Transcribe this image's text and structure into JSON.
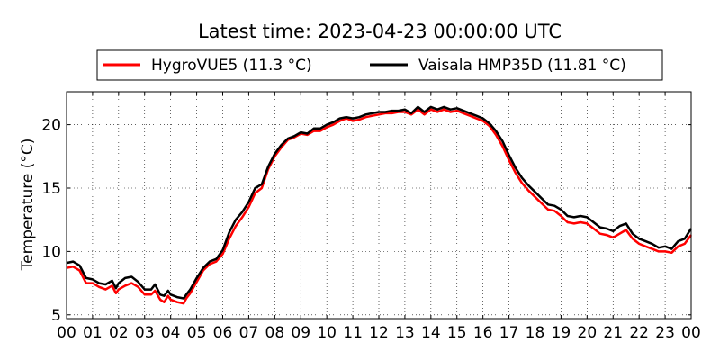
{
  "chart_data": {
    "type": "line",
    "title": "Latest time: 2023-04-23 00:00:00 UTC",
    "xlabel": "",
    "ylabel": "Temperature (°C)",
    "xlim": [
      0,
      24
    ],
    "ylim": [
      4.7,
      22.6
    ],
    "x_ticks": [
      "00",
      "01",
      "02",
      "03",
      "04",
      "05",
      "06",
      "07",
      "08",
      "09",
      "10",
      "11",
      "12",
      "13",
      "14",
      "15",
      "16",
      "17",
      "18",
      "19",
      "20",
      "21",
      "22",
      "23",
      "00"
    ],
    "y_ticks": [
      5,
      10,
      15,
      20
    ],
    "grid": true,
    "legend_position": "top",
    "series": [
      {
        "name": "HygroVUE5 (11.3 °C)",
        "color": "#ff0000",
        "points": [
          [
            0,
            8.7
          ],
          [
            0.25,
            8.8
          ],
          [
            0.5,
            8.5
          ],
          [
            0.75,
            7.5
          ],
          [
            1.0,
            7.5
          ],
          [
            1.25,
            7.2
          ],
          [
            1.5,
            7.0
          ],
          [
            1.75,
            7.3
          ],
          [
            1.9,
            6.7
          ],
          [
            2.0,
            7.0
          ],
          [
            2.25,
            7.3
          ],
          [
            2.5,
            7.5
          ],
          [
            2.75,
            7.2
          ],
          [
            3.0,
            6.6
          ],
          [
            3.25,
            6.6
          ],
          [
            3.4,
            6.9
          ],
          [
            3.6,
            6.2
          ],
          [
            3.75,
            6.0
          ],
          [
            3.9,
            6.5
          ],
          [
            4.0,
            6.2
          ],
          [
            4.25,
            6.0
          ],
          [
            4.5,
            5.9
          ],
          [
            4.6,
            6.3
          ],
          [
            4.75,
            6.7
          ],
          [
            5.0,
            7.6
          ],
          [
            5.25,
            8.5
          ],
          [
            5.5,
            9.0
          ],
          [
            5.75,
            9.2
          ],
          [
            6.0,
            9.8
          ],
          [
            6.25,
            11.0
          ],
          [
            6.5,
            12.0
          ],
          [
            6.75,
            12.7
          ],
          [
            7.0,
            13.5
          ],
          [
            7.25,
            14.6
          ],
          [
            7.5,
            15.0
          ],
          [
            7.75,
            16.5
          ],
          [
            8.0,
            17.5
          ],
          [
            8.25,
            18.2
          ],
          [
            8.5,
            18.8
          ],
          [
            8.75,
            19.0
          ],
          [
            9.0,
            19.3
          ],
          [
            9.25,
            19.2
          ],
          [
            9.5,
            19.5
          ],
          [
            9.75,
            19.5
          ],
          [
            10.0,
            19.8
          ],
          [
            10.25,
            20.0
          ],
          [
            10.5,
            20.3
          ],
          [
            10.75,
            20.5
          ],
          [
            11.0,
            20.3
          ],
          [
            11.25,
            20.4
          ],
          [
            11.5,
            20.6
          ],
          [
            11.75,
            20.7
          ],
          [
            12.0,
            20.8
          ],
          [
            12.25,
            20.9
          ],
          [
            12.5,
            20.9
          ],
          [
            12.75,
            21.0
          ],
          [
            13.0,
            21.0
          ],
          [
            13.25,
            20.8
          ],
          [
            13.5,
            21.2
          ],
          [
            13.75,
            20.8
          ],
          [
            14.0,
            21.2
          ],
          [
            14.25,
            21.0
          ],
          [
            14.5,
            21.2
          ],
          [
            14.75,
            21.0
          ],
          [
            15.0,
            21.1
          ],
          [
            15.25,
            20.9
          ],
          [
            15.5,
            20.7
          ],
          [
            15.75,
            20.5
          ],
          [
            16.0,
            20.3
          ],
          [
            16.25,
            19.9
          ],
          [
            16.5,
            19.2
          ],
          [
            16.75,
            18.3
          ],
          [
            17.0,
            17.2
          ],
          [
            17.25,
            16.2
          ],
          [
            17.5,
            15.4
          ],
          [
            17.75,
            14.8
          ],
          [
            18.0,
            14.3
          ],
          [
            18.25,
            13.8
          ],
          [
            18.5,
            13.3
          ],
          [
            18.75,
            13.2
          ],
          [
            19.0,
            12.8
          ],
          [
            19.25,
            12.3
          ],
          [
            19.5,
            12.2
          ],
          [
            19.75,
            12.3
          ],
          [
            20.0,
            12.2
          ],
          [
            20.25,
            11.8
          ],
          [
            20.5,
            11.4
          ],
          [
            20.75,
            11.3
          ],
          [
            21.0,
            11.1
          ],
          [
            21.25,
            11.4
          ],
          [
            21.5,
            11.7
          ],
          [
            21.75,
            11.0
          ],
          [
            22.0,
            10.6
          ],
          [
            22.25,
            10.4
          ],
          [
            22.5,
            10.2
          ],
          [
            22.75,
            10.0
          ],
          [
            23.0,
            10.0
          ],
          [
            23.25,
            9.9
          ],
          [
            23.5,
            10.4
          ],
          [
            23.75,
            10.6
          ],
          [
            24.0,
            11.3
          ]
        ]
      },
      {
        "name": "Vaisala HMP35D (11.81 °C)",
        "color": "#000000",
        "points": [
          [
            0,
            9.1
          ],
          [
            0.25,
            9.2
          ],
          [
            0.5,
            8.9
          ],
          [
            0.75,
            7.9
          ],
          [
            1.0,
            7.8
          ],
          [
            1.25,
            7.5
          ],
          [
            1.5,
            7.4
          ],
          [
            1.75,
            7.7
          ],
          [
            1.9,
            7.1
          ],
          [
            2.0,
            7.5
          ],
          [
            2.25,
            7.9
          ],
          [
            2.5,
            8.0
          ],
          [
            2.75,
            7.6
          ],
          [
            3.0,
            7.0
          ],
          [
            3.25,
            7.0
          ],
          [
            3.4,
            7.4
          ],
          [
            3.6,
            6.6
          ],
          [
            3.75,
            6.5
          ],
          [
            3.9,
            6.9
          ],
          [
            4.0,
            6.6
          ],
          [
            4.25,
            6.4
          ],
          [
            4.5,
            6.3
          ],
          [
            4.6,
            6.6
          ],
          [
            4.75,
            7.0
          ],
          [
            5.0,
            7.9
          ],
          [
            5.25,
            8.7
          ],
          [
            5.5,
            9.2
          ],
          [
            5.75,
            9.4
          ],
          [
            6.0,
            10.1
          ],
          [
            6.25,
            11.5
          ],
          [
            6.5,
            12.5
          ],
          [
            6.75,
            13.1
          ],
          [
            7.0,
            13.9
          ],
          [
            7.25,
            15.0
          ],
          [
            7.5,
            15.3
          ],
          [
            7.75,
            16.7
          ],
          [
            8.0,
            17.7
          ],
          [
            8.25,
            18.4
          ],
          [
            8.5,
            18.9
          ],
          [
            8.75,
            19.1
          ],
          [
            9.0,
            19.4
          ],
          [
            9.25,
            19.3
          ],
          [
            9.5,
            19.7
          ],
          [
            9.75,
            19.7
          ],
          [
            10.0,
            20.0
          ],
          [
            10.25,
            20.2
          ],
          [
            10.5,
            20.5
          ],
          [
            10.75,
            20.6
          ],
          [
            11.0,
            20.5
          ],
          [
            11.25,
            20.6
          ],
          [
            11.5,
            20.8
          ],
          [
            11.75,
            20.9
          ],
          [
            12.0,
            21.0
          ],
          [
            12.25,
            21.0
          ],
          [
            12.5,
            21.1
          ],
          [
            12.75,
            21.1
          ],
          [
            13.0,
            21.2
          ],
          [
            13.25,
            20.9
          ],
          [
            13.5,
            21.4
          ],
          [
            13.75,
            21.0
          ],
          [
            14.0,
            21.4
          ],
          [
            14.25,
            21.2
          ],
          [
            14.5,
            21.4
          ],
          [
            14.75,
            21.2
          ],
          [
            15.0,
            21.3
          ],
          [
            15.25,
            21.1
          ],
          [
            15.5,
            20.9
          ],
          [
            15.75,
            20.7
          ],
          [
            16.0,
            20.5
          ],
          [
            16.25,
            20.1
          ],
          [
            16.5,
            19.5
          ],
          [
            16.75,
            18.7
          ],
          [
            17.0,
            17.6
          ],
          [
            17.25,
            16.6
          ],
          [
            17.5,
            15.8
          ],
          [
            17.75,
            15.2
          ],
          [
            18.0,
            14.7
          ],
          [
            18.25,
            14.2
          ],
          [
            18.5,
            13.7
          ],
          [
            18.75,
            13.6
          ],
          [
            19.0,
            13.3
          ],
          [
            19.25,
            12.8
          ],
          [
            19.5,
            12.7
          ],
          [
            19.75,
            12.8
          ],
          [
            20.0,
            12.7
          ],
          [
            20.25,
            12.3
          ],
          [
            20.5,
            11.9
          ],
          [
            20.75,
            11.8
          ],
          [
            21.0,
            11.6
          ],
          [
            21.25,
            12.0
          ],
          [
            21.5,
            12.2
          ],
          [
            21.75,
            11.4
          ],
          [
            22.0,
            11.0
          ],
          [
            22.25,
            10.8
          ],
          [
            22.5,
            10.6
          ],
          [
            22.75,
            10.3
          ],
          [
            23.0,
            10.4
          ],
          [
            23.25,
            10.2
          ],
          [
            23.5,
            10.8
          ],
          [
            23.75,
            11.0
          ],
          [
            24.0,
            11.81
          ]
        ]
      }
    ]
  }
}
